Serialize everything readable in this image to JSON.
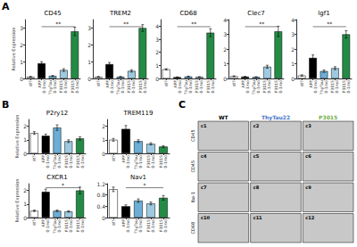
{
  "chart_data": [
    {
      "type": "bar",
      "panel": "A",
      "title": "CD45",
      "categories": [
        "WT",
        "APP\n0-1mo",
        "ThyTau\n0-1mo",
        "P301S\n0-1mo",
        "P301S\n0-1mo"
      ],
      "values": [
        0.1,
        0.9,
        0.15,
        0.5,
        2.8
      ],
      "errors": [
        0.02,
        0.1,
        0.03,
        0.08,
        0.25
      ],
      "colors": [
        "white",
        "black",
        "#6baed6",
        "#9ecae1",
        "#238b45"
      ],
      "edge_color": "black",
      "ylabel": "Relative Expression",
      "ylim": [
        0,
        3.5
      ],
      "yticks": [
        0,
        1,
        2,
        3
      ],
      "grid": false,
      "annotations": [
        {
          "text": "**",
          "start": 1,
          "end": 4
        }
      ]
    },
    {
      "type": "bar",
      "panel": "A",
      "title": "TREM2",
      "categories": [
        "WT",
        "APP\n0-1mo",
        "ThyTau\n0-1mo",
        "P301S\n0-1mo",
        "P301S\n0-1mo"
      ],
      "values": [
        0.1,
        0.85,
        0.1,
        0.45,
        3.0
      ],
      "errors": [
        0.02,
        0.1,
        0.02,
        0.07,
        0.2
      ],
      "colors": [
        "white",
        "black",
        "#6baed6",
        "#9ecae1",
        "#238b45"
      ],
      "edge_color": "black",
      "ylim": [
        0,
        3.5
      ],
      "yticks": [
        0,
        1,
        2,
        3
      ],
      "grid": false,
      "annotations": [
        {
          "text": "**",
          "start": 1,
          "end": 4
        }
      ]
    },
    {
      "type": "bar",
      "panel": "A",
      "title": "CD68",
      "categories": [
        "WT",
        "APP\n0-1mo",
        "ThyTau\n0-1mo",
        "P301S\n0-1mo",
        "P301S\n0-1mo"
      ],
      "values": [
        0.7,
        0.1,
        0.15,
        0.12,
        3.5
      ],
      "errors": [
        0.05,
        0.02,
        0.03,
        0.02,
        0.3
      ],
      "colors": [
        "white",
        "black",
        "#6baed6",
        "#9ecae1",
        "#238b45"
      ],
      "edge_color": "black",
      "ylim": [
        0,
        4.5
      ],
      "yticks": [
        0,
        1,
        2,
        3,
        4
      ],
      "grid": false,
      "annotations": [
        {
          "text": "**",
          "start": 1,
          "end": 4
        }
      ]
    },
    {
      "type": "bar",
      "panel": "A",
      "title": "Clec7",
      "categories": [
        "WT",
        "APP\n0-1mo",
        "ThyTau\n0-1mo",
        "P301S\n0-1mo",
        "P301S\n0-1mo"
      ],
      "values": [
        0.15,
        0.12,
        0.1,
        0.8,
        3.2
      ],
      "errors": [
        0.03,
        0.02,
        0.02,
        0.1,
        0.35
      ],
      "colors": [
        "white",
        "black",
        "#6baed6",
        "#9ecae1",
        "#238b45"
      ],
      "edge_color": "black",
      "ylim": [
        0,
        4.0
      ],
      "yticks": [
        0,
        1,
        2,
        3,
        4
      ],
      "grid": false,
      "annotations": [
        {
          "text": "**",
          "start": 1,
          "end": 4
        }
      ]
    },
    {
      "type": "bar",
      "panel": "A",
      "title": "lgf1",
      "categories": [
        "WT",
        "APP\n0-1mo",
        "ThyTau\n0-1mo",
        "P301S\n0-1mo",
        "P301S\n0-1mo"
      ],
      "values": [
        0.2,
        1.4,
        0.5,
        0.7,
        3.0
      ],
      "errors": [
        0.05,
        0.2,
        0.08,
        0.1,
        0.25
      ],
      "colors": [
        "white",
        "black",
        "#6baed6",
        "#9ecae1",
        "#238b45"
      ],
      "edge_color": "black",
      "ylim": [
        0,
        4.0
      ],
      "yticks": [
        0,
        1,
        2,
        3,
        4
      ],
      "grid": false,
      "annotations": [
        {
          "text": "**",
          "start": 1,
          "end": 4
        }
      ]
    },
    {
      "type": "bar",
      "panel": "B",
      "title": "P2ry12",
      "categories": [
        "WT",
        "APP\n0-1mo",
        "ThyTau\n0-1mo",
        "P301S\n0-1mo",
        "P301S\n0-1mo"
      ],
      "values": [
        1.5,
        1.3,
        1.9,
        0.9,
        1.1
      ],
      "errors": [
        0.1,
        0.12,
        0.2,
        0.1,
        0.12
      ],
      "colors": [
        "white",
        "black",
        "#6baed6",
        "#9ecae1",
        "#238b45"
      ],
      "edge_color": "black",
      "ylabel": "Relative Expression",
      "ylim": [
        0,
        2.5
      ],
      "yticks": [
        0,
        1,
        2
      ],
      "grid": false
    },
    {
      "type": "bar",
      "panel": "B",
      "title": "TREM119",
      "categories": [
        "WT",
        "APP\n0-1mo",
        "ThyTau\n0-1mo",
        "P301S\n0-1mo",
        "P301S\n0-1mo"
      ],
      "values": [
        1.0,
        1.8,
        0.9,
        0.7,
        0.5
      ],
      "errors": [
        0.1,
        0.25,
        0.1,
        0.08,
        0.06
      ],
      "colors": [
        "white",
        "black",
        "#6baed6",
        "#9ecae1",
        "#238b45"
      ],
      "edge_color": "black",
      "ylim": [
        0,
        2.5
      ],
      "yticks": [
        0,
        1,
        2
      ],
      "grid": false
    },
    {
      "type": "bar",
      "panel": "B",
      "title": "CXCR1",
      "categories": [
        "WT",
        "APP\n0-1mo",
        "ThyTau\n0-1mo",
        "P301S\n0-1mo",
        "P301S\n0-1mo"
      ],
      "values": [
        0.5,
        1.9,
        0.5,
        0.45,
        2.0
      ],
      "errors": [
        0.05,
        0.2,
        0.05,
        0.05,
        0.25
      ],
      "colors": [
        "white",
        "black",
        "#6baed6",
        "#9ecae1",
        "#238b45"
      ],
      "edge_color": "black",
      "ylabel": "Relative Expression",
      "ylim": [
        0,
        2.5
      ],
      "yticks": [
        0,
        1,
        2
      ],
      "grid": false,
      "annotations": [
        {
          "text": "*",
          "start": 1,
          "end": 4
        }
      ]
    },
    {
      "type": "bar",
      "panel": "B",
      "title": "Nav1",
      "categories": [
        "WT",
        "APP\n0-1mo",
        "ThyTau\n0-1mo",
        "P301S\n0-1mo",
        "P301S\n0-1mo"
      ],
      "values": [
        1.0,
        0.4,
        0.6,
        0.5,
        0.7
      ],
      "errors": [
        0.08,
        0.05,
        0.06,
        0.05,
        0.08
      ],
      "colors": [
        "white",
        "black",
        "#6baed6",
        "#9ecae1",
        "#238b45"
      ],
      "edge_color": "black",
      "ylim": [
        0,
        1.2
      ],
      "yticks": [
        0,
        0.4,
        0.8,
        1.2
      ],
      "grid": false,
      "annotations": [
        {
          "text": "*",
          "start": 1,
          "end": 4
        }
      ]
    },
    {
      "type": "image_grid",
      "panel": "C",
      "categories": [
        "WT",
        "ThyTau22",
        "P3015"
      ],
      "colors": [
        "black",
        "#4472c4",
        "#70ad47"
      ],
      "row_labels": [
        "CD45",
        "CD45",
        "Iba-1",
        "CD68"
      ],
      "annotations": [
        "c1",
        "c2",
        "c3",
        "c4",
        "c5",
        "c6",
        "c7",
        "c8",
        "c9",
        "c10",
        "c11",
        "c12"
      ],
      "color": "#c8c8c8",
      "edge_color": "black"
    }
  ]
}
